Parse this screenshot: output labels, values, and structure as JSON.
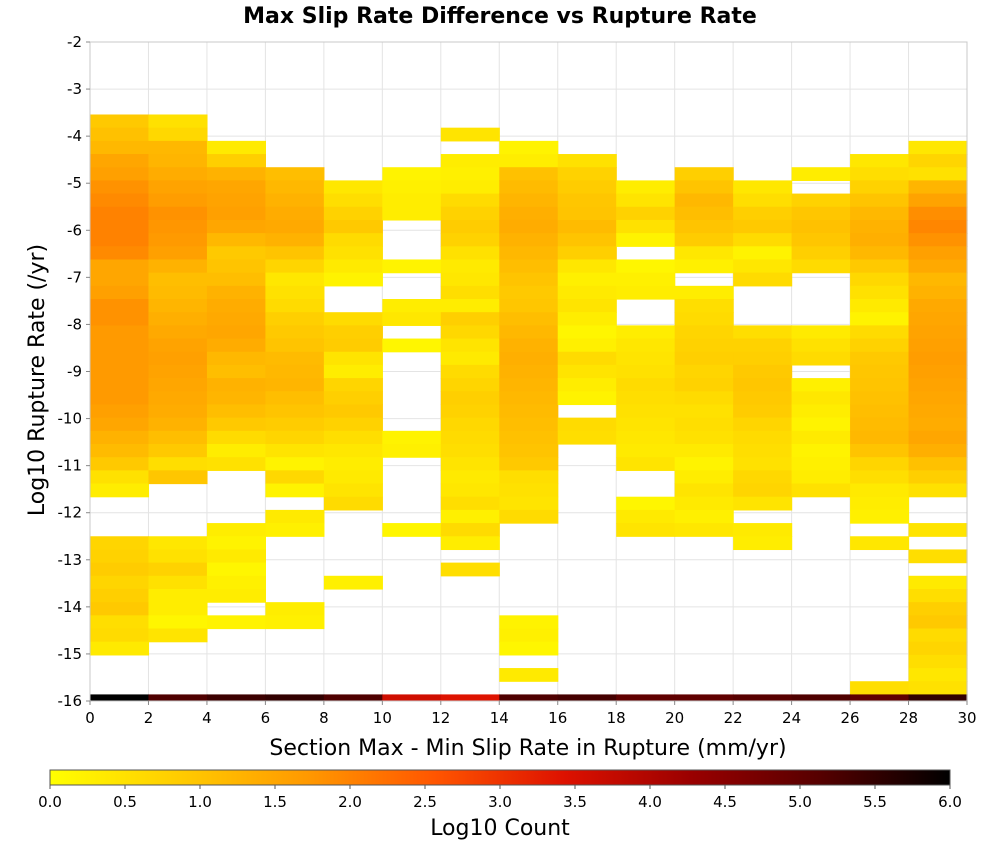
{
  "chart_data": {
    "type": "heatmap",
    "title": "Max Slip Rate Difference vs Rupture Rate",
    "xlabel": "Section Max - Min Slip Rate in Rupture (mm/yr)",
    "ylabel": "Log10 Rupture Rate (/yr)",
    "xlim": [
      0,
      30
    ],
    "ylim": [
      -16,
      -2
    ],
    "x_ticks": [
      "0",
      "2",
      "4",
      "6",
      "8",
      "10",
      "12",
      "14",
      "16",
      "18",
      "20",
      "22",
      "24",
      "26",
      "28",
      "30"
    ],
    "y_ticks": [
      "-2",
      "-3",
      "-4",
      "-5",
      "-6",
      "-7",
      "-8",
      "-9",
      "-10",
      "-11",
      "-12",
      "-13",
      "-14",
      "-15",
      "-16"
    ],
    "x_bin_width": 2,
    "y_bin_width": 0.28,
    "grid": true,
    "colorbar": {
      "label": "Log10 Count",
      "range": [
        0,
        6
      ],
      "ticks": [
        "0.0",
        "0.5",
        "1.0",
        "1.5",
        "2.0",
        "2.5",
        "3.0",
        "3.5",
        "4.0",
        "4.5",
        "5.0",
        "5.5",
        "6.0"
      ],
      "colormap": [
        "#ffff00",
        "#ffcc00",
        "#ff9900",
        "#ff5500",
        "#dd1100",
        "#990000",
        "#550000",
        "#000000"
      ],
      "position": "bottom"
    },
    "z_by_column_top_to_bottom": [
      {
        "x_start": 0,
        "y_top": -3.54,
        "z": [
          0.9,
          1.05,
          1.2,
          1.5,
          1.6,
          1.8,
          1.9,
          2.0,
          2.0,
          2.0,
          1.9,
          1.5,
          1.5,
          1.6,
          1.8,
          1.8,
          1.7,
          1.7,
          1.7,
          1.7,
          1.7,
          1.7,
          1.6,
          1.5,
          1.3,
          1.15,
          0.9,
          0.5,
          0.3,
          null,
          null,
          null,
          0.7,
          0.75,
          0.85,
          0.7,
          0.8,
          0.9,
          0.55,
          0.6,
          0.35,
          null
        ]
      },
      {
        "x_start": 2,
        "y_top": -3.54,
        "z": [
          0.5,
          0.65,
          1.2,
          1.25,
          1.4,
          1.55,
          1.65,
          1.8,
          1.75,
          1.7,
          1.6,
          1.3,
          1.1,
          1.15,
          1.25,
          1.35,
          1.45,
          1.55,
          1.6,
          1.55,
          1.5,
          1.45,
          1.4,
          1.3,
          1.1,
          0.9,
          0.55,
          0.95,
          null,
          null,
          null,
          null,
          0.4,
          0.5,
          0.75,
          0.5,
          0.3,
          0.3,
          0.15,
          0.45,
          null,
          null
        ]
      },
      {
        "x_start": 4,
        "y_top": -4.1,
        "z": [
          0.35,
          0.8,
          1.3,
          1.5,
          1.55,
          1.6,
          1.5,
          1.2,
          0.9,
          1.0,
          1.1,
          1.3,
          1.4,
          1.45,
          1.5,
          1.4,
          1.2,
          1.1,
          1.3,
          1.25,
          1.1,
          0.9,
          0.6,
          0.3,
          0.5,
          null,
          null,
          null,
          null,
          0.3,
          0.2,
          0.35,
          0.15,
          0.25,
          0.3,
          null,
          0.2
        ]
      },
      {
        "x_start": 6,
        "y_top": -4.66,
        "z": [
          1.1,
          1.2,
          1.3,
          1.4,
          1.45,
          1.3,
          1.0,
          0.7,
          0.4,
          0.5,
          0.6,
          0.8,
          0.9,
          1.0,
          1.15,
          1.2,
          1.25,
          1.1,
          1.0,
          0.85,
          0.7,
          0.45,
          0.2,
          0.65,
          0.2,
          null,
          0.35,
          0.25,
          null,
          null,
          null,
          null,
          null,
          0.3,
          0.25
        ]
      },
      {
        "x_start": 8,
        "y_top": -4.94,
        "z": [
          0.4,
          0.55,
          0.75,
          0.9,
          0.6,
          0.5,
          0.35,
          0.2,
          null,
          null,
          0.6,
          0.8,
          0.85,
          0.45,
          0.3,
          0.7,
          0.8,
          0.9,
          0.75,
          0.55,
          0.4,
          0.3,
          0.35,
          0.45,
          0.6,
          null,
          null,
          null,
          null,
          null,
          0.25
        ]
      },
      {
        "x_start": 10,
        "y_top": -4.66,
        "z": [
          0.2,
          0.25,
          0.3,
          0.3,
          null,
          null,
          null,
          0.2,
          null,
          null,
          0.3,
          0.4,
          null,
          0.15,
          null,
          null,
          null,
          null,
          null,
          null,
          0.2,
          0.25,
          null,
          null,
          null,
          null,
          null,
          0.15
        ]
      },
      {
        "x_start": 12,
        "y_top": -3.82,
        "z": [
          0.45,
          null,
          0.3,
          0.25,
          0.3,
          0.6,
          0.75,
          0.85,
          0.75,
          0.5,
          0.35,
          0.4,
          0.55,
          0.3,
          0.8,
          0.65,
          0.45,
          0.35,
          0.6,
          0.7,
          0.8,
          0.75,
          0.65,
          0.6,
          0.55,
          0.45,
          0.35,
          0.4,
          0.55,
          0.25,
          0.6,
          0.3,
          null,
          0.55
        ]
      },
      {
        "x_start": 14,
        "y_top": -4.1,
        "z": [
          0.2,
          0.3,
          1.05,
          1.15,
          1.25,
          1.35,
          1.4,
          1.3,
          1.2,
          1.1,
          1.0,
          0.9,
          0.95,
          1.1,
          1.2,
          1.3,
          1.35,
          1.3,
          1.25,
          1.2,
          1.15,
          1.1,
          1.05,
          1.0,
          0.9,
          0.55,
          0.5,
          0.45,
          0.6,
          null,
          null,
          null,
          null,
          null,
          null,
          null,
          0.2,
          0.25,
          0.15,
          null,
          0.35
        ]
      },
      {
        "x_start": 16,
        "y_top": -4.38,
        "z": [
          0.5,
          0.75,
          0.85,
          0.95,
          1.0,
          1.15,
          1.0,
          0.8,
          0.4,
          0.25,
          0.35,
          0.45,
          0.3,
          0.15,
          0.25,
          0.6,
          0.45,
          0.3,
          0.2,
          null,
          0.6,
          0.55
        ]
      },
      {
        "x_start": 18,
        "y_top": -4.94,
        "z": [
          0.3,
          0.45,
          0.75,
          0.5,
          0.2,
          null,
          0.15,
          0.25,
          0.3,
          null,
          null,
          0.3,
          0.4,
          0.45,
          0.5,
          0.6,
          0.55,
          0.5,
          0.45,
          0.4,
          0.35,
          0.45,
          null,
          null,
          0.15,
          0.35,
          0.45
        ]
      },
      {
        "x_start": 20,
        "y_top": -4.66,
        "z": [
          0.8,
          1.0,
          1.2,
          1.1,
          1.0,
          0.85,
          0.4,
          0.25,
          null,
          0.3,
          0.55,
          0.6,
          0.7,
          0.75,
          0.8,
          0.7,
          0.75,
          0.6,
          0.5,
          0.55,
          0.5,
          0.35,
          0.2,
          0.3,
          0.45,
          0.35,
          0.25,
          0.4
        ]
      },
      {
        "x_start": 22,
        "y_top": -4.94,
        "z": [
          0.4,
          0.55,
          0.8,
          0.9,
          0.6,
          0.2,
          0.4,
          0.6,
          null,
          null,
          null,
          0.55,
          0.75,
          0.8,
          0.9,
          0.95,
          0.9,
          0.85,
          0.7,
          0.6,
          0.55,
          0.5,
          0.65,
          0.7,
          0.45,
          null,
          0.35,
          0.3
        ]
      },
      {
        "x_start": 24,
        "y_top": -4.66,
        "z": [
          0.3,
          null,
          0.75,
          0.95,
          1.05,
          0.95,
          0.8,
          0.6,
          null,
          null,
          null,
          null,
          0.35,
          0.5,
          0.6,
          null,
          0.25,
          0.4,
          0.3,
          0.2,
          0.35,
          0.2,
          0.25,
          0.3,
          0.5
        ]
      },
      {
        "x_start": 26,
        "y_top": -4.38,
        "z": [
          0.4,
          0.55,
          0.75,
          1.0,
          1.2,
          1.3,
          1.35,
          1.2,
          0.9,
          0.65,
          0.5,
          0.35,
          0.2,
          0.6,
          0.75,
          0.9,
          0.95,
          1.0,
          1.05,
          1.1,
          1.15,
          1.2,
          1.0,
          0.7,
          0.55,
          0.35,
          0.3,
          0.25,
          null,
          0.4,
          null,
          null,
          null,
          null,
          null,
          null,
          null,
          null,
          null,
          null,
          0.55
        ]
      },
      {
        "x_start": 28,
        "y_top": -4.1,
        "z": [
          0.4,
          0.7,
          0.5,
          1.25,
          1.55,
          1.85,
          1.95,
          1.8,
          1.6,
          1.45,
          1.2,
          1.3,
          1.45,
          1.5,
          1.55,
          1.6,
          1.65,
          1.6,
          1.55,
          1.5,
          1.45,
          1.4,
          1.5,
          1.35,
          1.05,
          0.8,
          0.5,
          null,
          null,
          0.45,
          null,
          0.55,
          null,
          0.35,
          0.55,
          0.8,
          0.9,
          0.6,
          0.7,
          0.55,
          0.4,
          0.5
        ]
      }
    ],
    "bottom_row": {
      "y_range": [
        -16,
        -15.86
      ],
      "z_by_x_bin": [
        6.0,
        5.2,
        5.4,
        5.5,
        5.2,
        3.6,
        3.4,
        5.2,
        5.3,
        5.0,
        5.0,
        5.1,
        5.2,
        5.0,
        5.5
      ]
    }
  }
}
